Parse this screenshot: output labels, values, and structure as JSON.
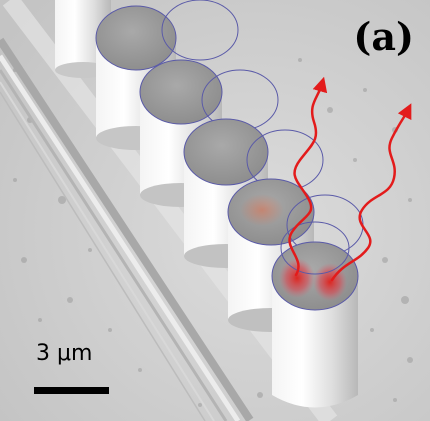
{
  "panel_label": "(a)",
  "scale_bar": {
    "label": "3 μm"
  },
  "colors": {
    "background": "#d2d2d2",
    "pillar": "#e6e6e6",
    "pillar_top": "#9a9a9a",
    "mode_circle": "#5a5aa8",
    "emission": "#e31b1b"
  },
  "icons": {
    "emission_arrow": "wavy-arrow-icon"
  }
}
